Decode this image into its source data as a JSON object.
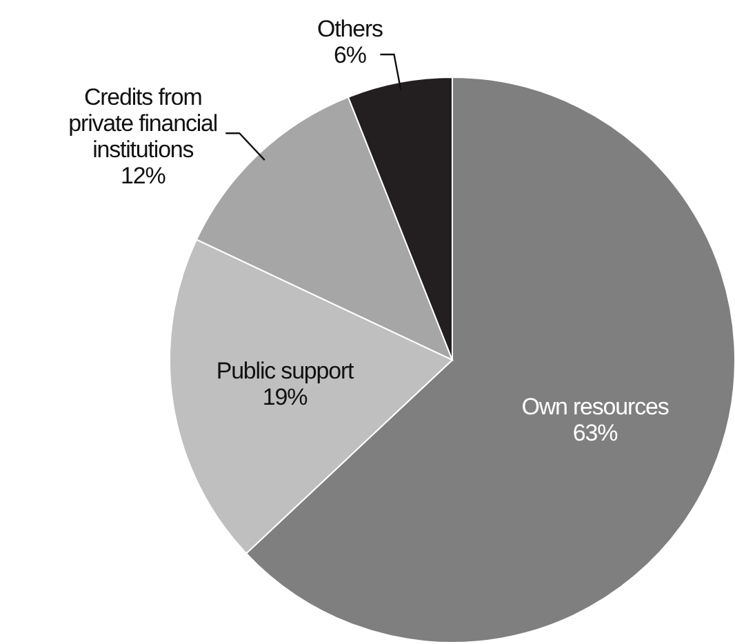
{
  "chart_data": {
    "type": "pie",
    "categories": [
      "Own resources",
      "Public support",
      "Credits from private financial institutions",
      "Others"
    ],
    "values": [
      63,
      19,
      12,
      6
    ],
    "colors": [
      "#7f7f7f",
      "#bfbfbf",
      "#a6a6a6",
      "#231f20"
    ],
    "value_labels": [
      "63%",
      "19%",
      "12%",
      "6%"
    ]
  }
}
